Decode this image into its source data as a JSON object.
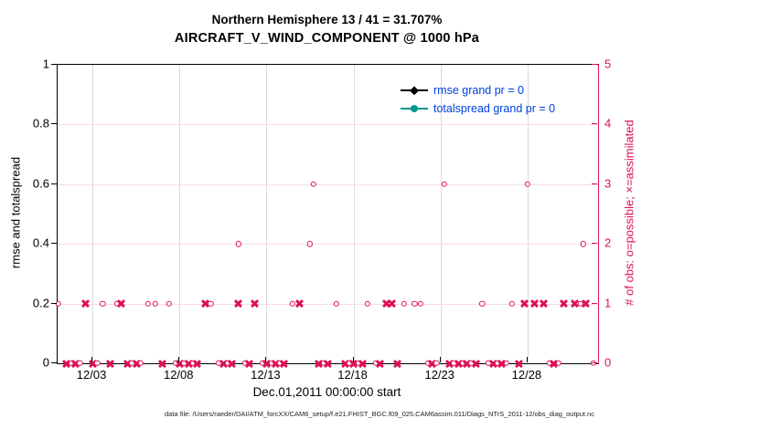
{
  "colors": {
    "obs_pink": "#dd1155",
    "grid_pink": "#f8dbe6",
    "grid_gray": "#d9d9d9",
    "legend_text_blue": "#0040dd",
    "rmse_black": "#000000",
    "totalspread_teal": "#00998a"
  },
  "caption": "data file: /Users/raeder/DAI/ATM_forcXX/CAM6_setup/f.e21.FHIST_BGC.f09_025.CAM6assim.011/Diags_NTrS_2011-12/obs_diag_output.nc",
  "chart_data": {
    "type": "scatter",
    "title": "Northern Hemisphere 13 / 41 = 31.707%",
    "subtitle": "AIRCRAFT_V_WIND_COMPONENT @ 1000 hPa",
    "xlabel": "Dec.01,2011 00:00:00 start",
    "ylabel_left": "rmse and totalspread",
    "ylabel_right": "# of obs: o=possible; ×=assimilated",
    "ylim_left": [
      0,
      1
    ],
    "ylim_right": [
      0,
      5
    ],
    "yticks_left": [
      {
        "value": 0,
        "label": "0"
      },
      {
        "value": 0.2,
        "label": "0.2"
      },
      {
        "value": 0.4,
        "label": "0.4"
      },
      {
        "value": 0.6,
        "label": "0.6"
      },
      {
        "value": 0.8,
        "label": "0.8"
      },
      {
        "value": 1,
        "label": "1"
      }
    ],
    "yticks_right": [
      {
        "value": 0,
        "label": "0"
      },
      {
        "value": 1,
        "label": "1"
      },
      {
        "value": 2,
        "label": "2"
      },
      {
        "value": 3,
        "label": "3"
      },
      {
        "value": 4,
        "label": "4"
      },
      {
        "value": 5,
        "label": "5"
      }
    ],
    "xlim_days": [
      1,
      32.05
    ],
    "xticks": [
      {
        "day": 3,
        "label": "12/03"
      },
      {
        "day": 8,
        "label": "12/08"
      },
      {
        "day": 13,
        "label": "12/13"
      },
      {
        "day": 18,
        "label": "12/18"
      },
      {
        "day": 23,
        "label": "12/23"
      },
      {
        "day": 28,
        "label": "12/28"
      }
    ],
    "right_gridline_values": [
      1,
      2,
      3,
      4
    ],
    "legend": [
      {
        "label": "rmse grand pr = 0",
        "color": "#000000",
        "marker": "diamond"
      },
      {
        "label": "totalspread grand pr = 0",
        "color": "#00998a",
        "marker": "circle"
      }
    ],
    "obs_points": [
      {
        "day": 15.7,
        "count": 3,
        "marker": "o"
      },
      {
        "day": 23.2,
        "count": 3,
        "marker": "o"
      },
      {
        "day": 28.0,
        "count": 3,
        "marker": "o"
      },
      {
        "day": 11.4,
        "count": 2,
        "marker": "o"
      },
      {
        "day": 15.5,
        "count": 2,
        "marker": "o"
      },
      {
        "day": 31.2,
        "count": 2,
        "marker": "o"
      },
      {
        "day": 1.05,
        "count": 1,
        "marker": "o"
      },
      {
        "day": 2.6,
        "count": 1,
        "marker": "x"
      },
      {
        "day": 3.6,
        "count": 1,
        "marker": "o"
      },
      {
        "day": 4.4,
        "count": 1,
        "marker": "o"
      },
      {
        "day": 4.65,
        "count": 1,
        "marker": "x"
      },
      {
        "day": 6.2,
        "count": 1,
        "marker": "o"
      },
      {
        "day": 6.6,
        "count": 1,
        "marker": "o"
      },
      {
        "day": 7.4,
        "count": 1,
        "marker": "o"
      },
      {
        "day": 9.5,
        "count": 1,
        "marker": "x"
      },
      {
        "day": 9.8,
        "count": 1,
        "marker": "o"
      },
      {
        "day": 11.4,
        "count": 1,
        "marker": "x"
      },
      {
        "day": 12.3,
        "count": 1,
        "marker": "x"
      },
      {
        "day": 14.5,
        "count": 1,
        "marker": "o"
      },
      {
        "day": 14.9,
        "count": 1,
        "marker": "x"
      },
      {
        "day": 17.0,
        "count": 1,
        "marker": "o"
      },
      {
        "day": 18.8,
        "count": 1,
        "marker": "o"
      },
      {
        "day": 19.9,
        "count": 1,
        "marker": "x"
      },
      {
        "day": 20.2,
        "count": 1,
        "marker": "x"
      },
      {
        "day": 20.9,
        "count": 1,
        "marker": "o"
      },
      {
        "day": 21.5,
        "count": 1,
        "marker": "o"
      },
      {
        "day": 21.85,
        "count": 1,
        "marker": "o"
      },
      {
        "day": 25.4,
        "count": 1,
        "marker": "o"
      },
      {
        "day": 27.1,
        "count": 1,
        "marker": "o"
      },
      {
        "day": 27.8,
        "count": 1,
        "marker": "x"
      },
      {
        "day": 28.4,
        "count": 1,
        "marker": "x"
      },
      {
        "day": 28.9,
        "count": 1,
        "marker": "x"
      },
      {
        "day": 30.1,
        "count": 1,
        "marker": "x"
      },
      {
        "day": 30.7,
        "count": 1,
        "marker": "x"
      },
      {
        "day": 31.05,
        "count": 1,
        "marker": "o"
      },
      {
        "day": 31.35,
        "count": 1,
        "marker": "x"
      }
    ],
    "zero_line": {
      "day_start": 1.02,
      "day_end": 32.0,
      "step": 0.25,
      "gap_radius": 0.28,
      "count": 0
    }
  }
}
